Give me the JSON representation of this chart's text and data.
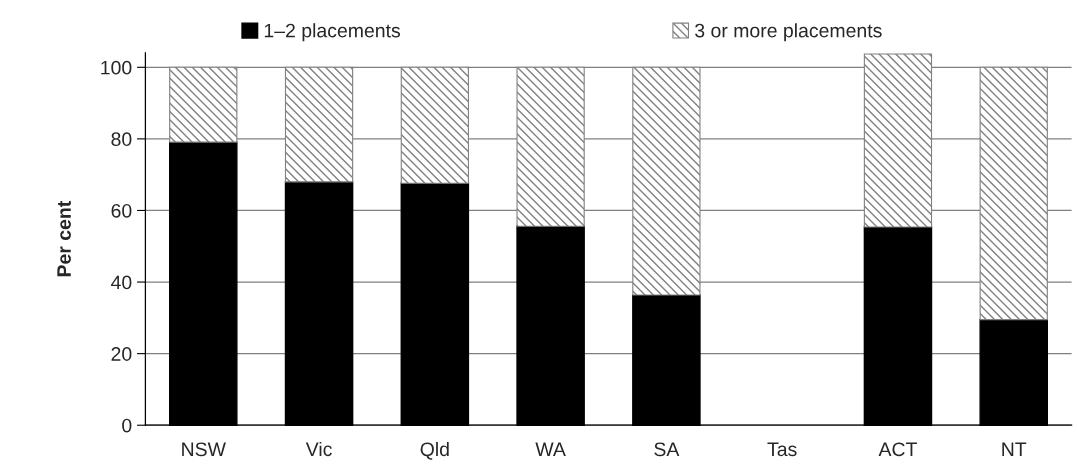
{
  "chart_data": {
    "type": "bar",
    "stacked": true,
    "ylabel": "Per cent",
    "categories": [
      "NSW",
      "Vic",
      "Qld",
      "WA",
      "SA",
      "Tas",
      "ACT",
      "NT"
    ],
    "series": [
      {
        "name": "1–2 placements",
        "color": "#000000",
        "values": [
          79.1,
          68,
          67.6,
          55.6,
          36.4,
          null,
          55.4,
          29.5
        ]
      },
      {
        "name": "3 or more placements",
        "color": "#808080",
        "values": [
          20.9,
          32,
          32.4,
          44.4,
          63.6,
          null,
          48.3,
          70.5
        ]
      }
    ],
    "ylim": [
      0,
      104
    ],
    "yticks": [
      0,
      20,
      40,
      60,
      80,
      100
    ],
    "grid": "y",
    "legend": "top"
  }
}
